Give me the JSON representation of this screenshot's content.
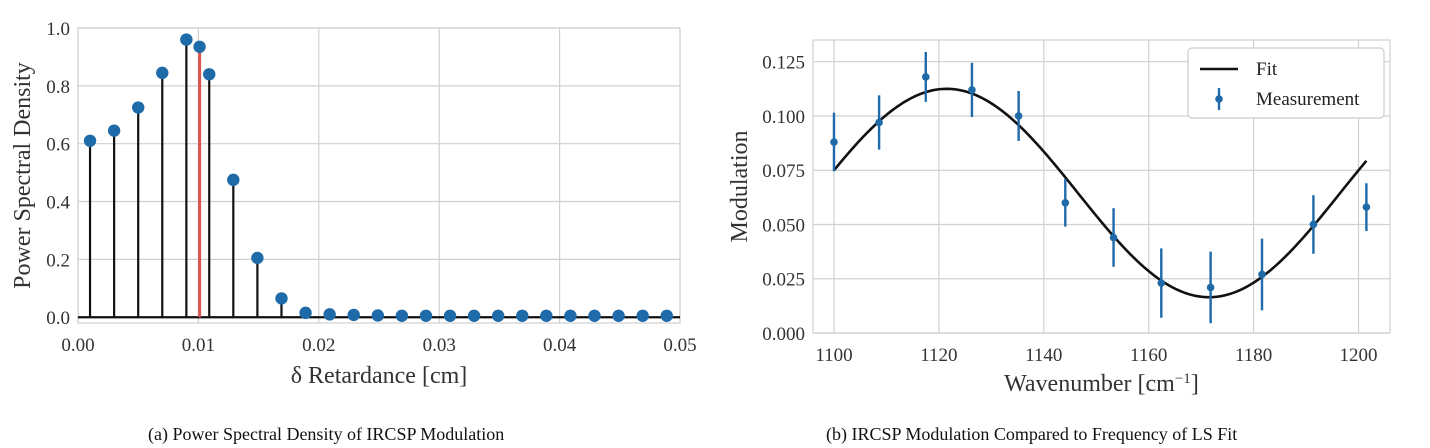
{
  "captions": {
    "a": "(a) Power Spectral Density of IRCSP Modulation",
    "b": "(b) IRCSP Modulation Compared to Frequency of LS Fit"
  },
  "chart_data": [
    {
      "type": "stem",
      "xlabel": "δ  Retardance [cm]",
      "ylabel": "Power Spectral Density",
      "xlim": [
        0.0,
        0.05
      ],
      "ylim": [
        -0.02,
        1.0
      ],
      "xticks": [
        "0.00",
        "0.01",
        "0.02",
        "0.03",
        "0.04",
        "0.05"
      ],
      "yticks": [
        "0.0",
        "0.2",
        "0.4",
        "0.6",
        "0.8",
        "1.0"
      ],
      "grid": true,
      "colors": {
        "stem": "#111111",
        "marker": "#1f6aa8",
        "highlight": "#d9534f",
        "grid": "#d0d0d0",
        "background": "#ffffff"
      },
      "series": [
        {
          "x": [
            0.001,
            0.003,
            0.005,
            0.007,
            0.009,
            0.0101,
            0.0109,
            0.0129,
            0.0149,
            0.0169,
            0.0189,
            0.0209,
            0.0229,
            0.0249,
            0.0269,
            0.0289,
            0.0309,
            0.0329,
            0.0349,
            0.0369,
            0.0389,
            0.0409,
            0.0429,
            0.0449,
            0.0469,
            0.0489
          ],
          "y": [
            0.61,
            0.645,
            0.725,
            0.845,
            0.96,
            0.935,
            0.84,
            0.475,
            0.205,
            0.065,
            0.015,
            0.01,
            0.008,
            0.006,
            0.005,
            0.005,
            0.005,
            0.005,
            0.005,
            0.005,
            0.005,
            0.005,
            0.005,
            0.005,
            0.005,
            0.005
          ]
        }
      ],
      "highlight_x": 0.0101
    },
    {
      "type": "line+errorbar",
      "xlabel": "Wavenumber [cm",
      "xlabel_sup": "−1",
      "xlabel_end": "]",
      "ylabel": "Modulation",
      "xlim": [
        1096,
        1206
      ],
      "ylim": [
        0.0,
        0.135
      ],
      "xticks": [
        "1100",
        "1120",
        "1140",
        "1160",
        "1180",
        "1200"
      ],
      "yticks": [
        "0.000",
        "0.025",
        "0.050",
        "0.075",
        "0.100",
        "0.125"
      ],
      "grid": true,
      "legend": {
        "placement": "top-right",
        "fit_label": "Fit",
        "measurement_label": "Measurement"
      },
      "colors": {
        "fit": "#111111",
        "measurement": "#1f6aa8",
        "grid": "#d0d0d0",
        "legend_border": "#cccccc"
      },
      "fit": {
        "offset": 0.0645,
        "amplitude": 0.048,
        "peak_x": 1121.5,
        "period": 100
      },
      "measurements": [
        {
          "x": 1100.0,
          "y": 0.088,
          "err": 0.0135
        },
        {
          "x": 1108.6,
          "y": 0.097,
          "err": 0.0125
        },
        {
          "x": 1117.5,
          "y": 0.118,
          "err": 0.0115
        },
        {
          "x": 1126.3,
          "y": 0.112,
          "err": 0.0125
        },
        {
          "x": 1135.2,
          "y": 0.1,
          "err": 0.0115
        },
        {
          "x": 1144.1,
          "y": 0.06,
          "err": 0.011
        },
        {
          "x": 1153.3,
          "y": 0.044,
          "err": 0.0135
        },
        {
          "x": 1162.4,
          "y": 0.023,
          "err": 0.016
        },
        {
          "x": 1171.8,
          "y": 0.021,
          "err": 0.0165
        },
        {
          "x": 1181.6,
          "y": 0.027,
          "err": 0.0165
        },
        {
          "x": 1191.4,
          "y": 0.05,
          "err": 0.0135
        },
        {
          "x": 1201.5,
          "y": 0.058,
          "err": 0.011
        }
      ]
    }
  ]
}
